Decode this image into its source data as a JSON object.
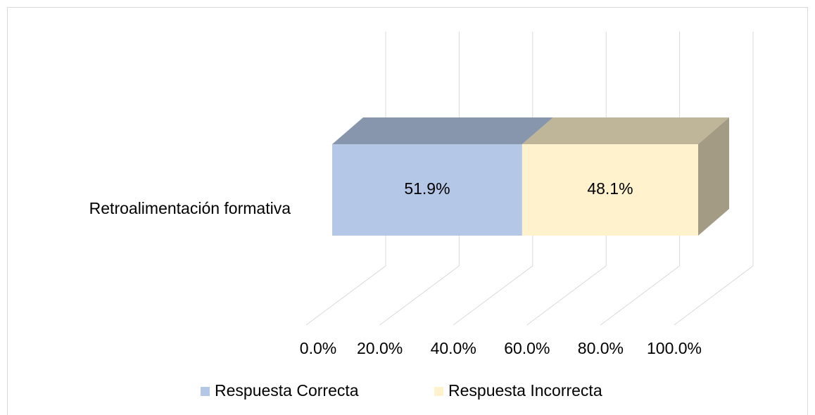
{
  "chart_data": {
    "type": "bar3d_stacked_horizontal",
    "categories": [
      "Retroalimentación formativa"
    ],
    "series": [
      {
        "name": "Respuesta Correcta",
        "color": "#b4c7e7",
        "values": [
          51.9
        ],
        "value_labels": [
          "51.9%"
        ]
      },
      {
        "name": "Respuesta Incorrecta",
        "color": "#fff2cc",
        "values": [
          48.1
        ],
        "value_labels": [
          "48.1%"
        ]
      }
    ],
    "xlim": [
      0,
      100
    ],
    "xticks": [
      {
        "value": 0,
        "label": "0.0%"
      },
      {
        "value": 20,
        "label": "20.0%"
      },
      {
        "value": 40,
        "label": "40.0%"
      },
      {
        "value": 60,
        "label": "60.0%"
      },
      {
        "value": 80,
        "label": "80.0%"
      },
      {
        "value": 100,
        "label": "100.0%"
      }
    ],
    "grid": true,
    "legend": "bottom"
  }
}
